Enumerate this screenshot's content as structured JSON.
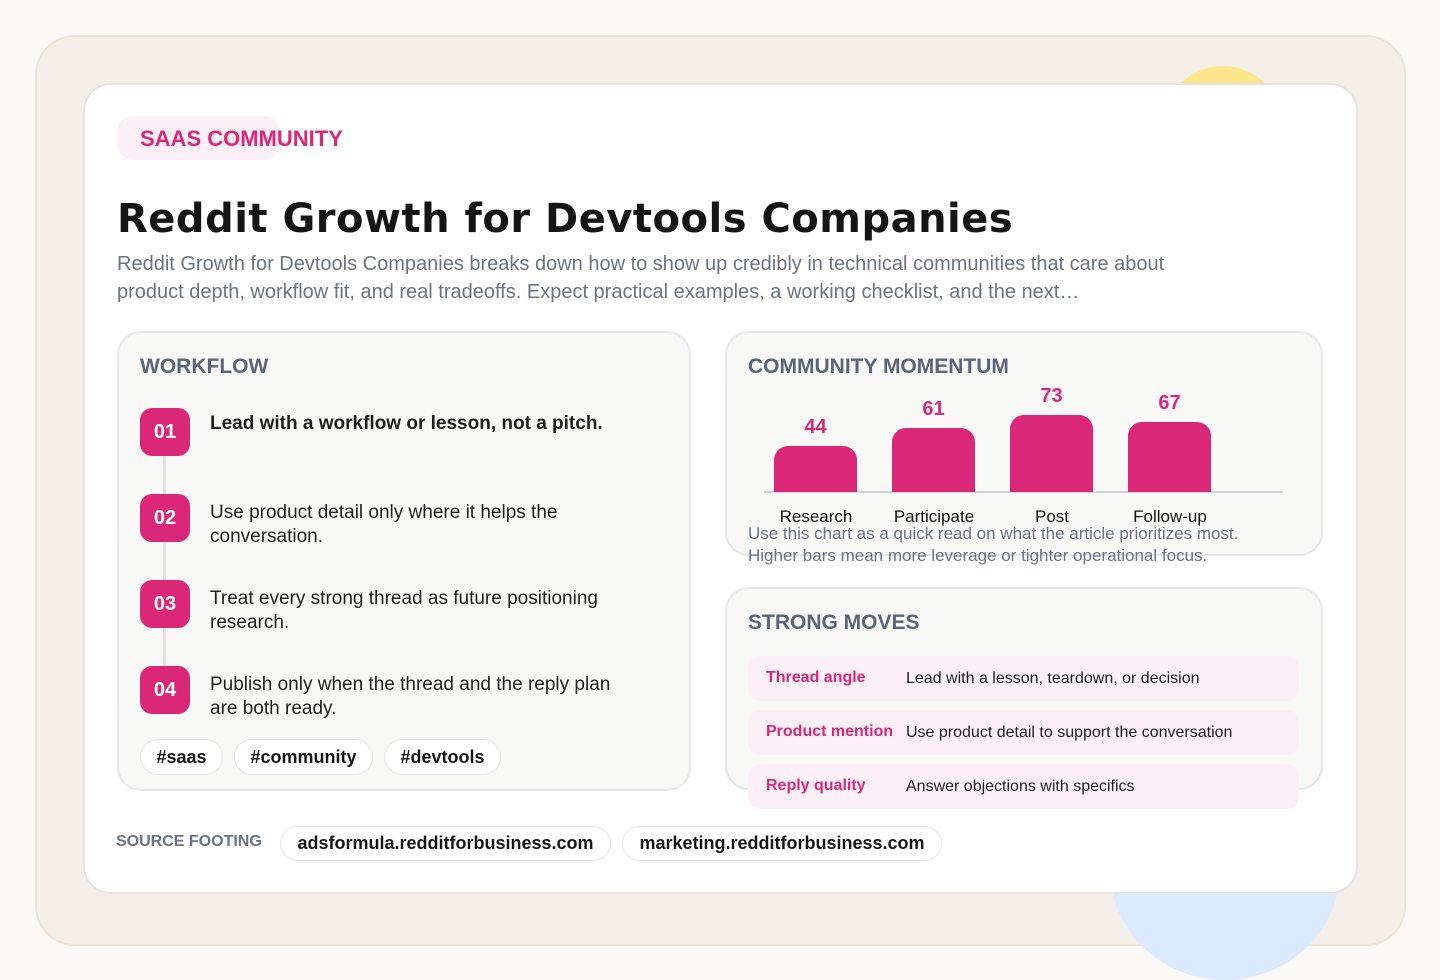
{
  "badge": "SAAS COMMUNITY",
  "title": "Reddit Growth for Devtools Companies",
  "subtitle": "Reddit Growth for Devtools Companies breaks down how to show up credibly in technical communities that care about product depth, workflow fit, and real tradeoffs. Expect practical examples, a working checklist, and the next…",
  "workflow": {
    "title": "WORKFLOW",
    "steps": [
      {
        "num": "01",
        "text": "Lead with a workflow or lesson, not a pitch."
      },
      {
        "num": "02",
        "text": "Use product detail only where it helps the conversation."
      },
      {
        "num": "03",
        "text": "Treat every strong thread as future positioning research."
      },
      {
        "num": "04",
        "text": "Publish only when the thread and the reply plan are both ready."
      }
    ],
    "tags": [
      "#saas",
      "#community",
      "#devtools"
    ]
  },
  "momentum": {
    "title": "COMMUNITY MOMENTUM",
    "note1": "Use this chart as a quick read on what the article prioritizes most.",
    "note2": "Higher bars mean more leverage or tighter operational focus."
  },
  "chart_data": {
    "type": "bar",
    "categories": [
      "Research",
      "Participate",
      "Post",
      "Follow-up"
    ],
    "values": [
      44,
      61,
      73,
      67
    ],
    "title": "COMMUNITY MOMENTUM",
    "color": "#db2777"
  },
  "moves": {
    "title": "STRONG MOVES",
    "items": [
      {
        "label": "Thread angle",
        "text": "Lead with a lesson, teardown, or decision"
      },
      {
        "label": "Product mention",
        "text": "Use product detail to support the conversation"
      },
      {
        "label": "Reply quality",
        "text": "Answer objections with specifics"
      }
    ]
  },
  "footer": {
    "label": "SOURCE FOOTING",
    "links": [
      "adsformula.redditforbusiness.com",
      "marketing.redditforbusiness.com"
    ]
  },
  "colors": {
    "accent": "#db2777",
    "background": "#f3eee7"
  }
}
